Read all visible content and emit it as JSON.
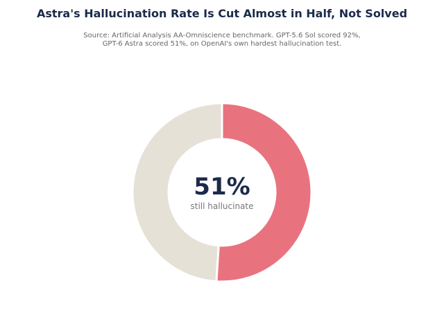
{
  "title": "Astra's Hallucination Rate Is Cut Almost in Half, Not Solved",
  "subtitle_lines": [
    "Source: Artificial Analysis AA-Omniscience benchmark. GPT-5.6 Sol scored 92%,",
    "GPT-6 Astra scored 51%, on OpenAI's own hardest hallucination test."
  ],
  "chart_data": {
    "type": "pie",
    "style": "donut",
    "slices": [
      {
        "value": 51,
        "color": "#e8737f"
      },
      {
        "value": 49,
        "color": "#e6e1d6"
      }
    ],
    "center_value": "51%",
    "center_caption": "still hallucinate",
    "title": "Astra's Hallucination Rate Is Cut Almost in Half, Not Solved",
    "legend": "none"
  }
}
